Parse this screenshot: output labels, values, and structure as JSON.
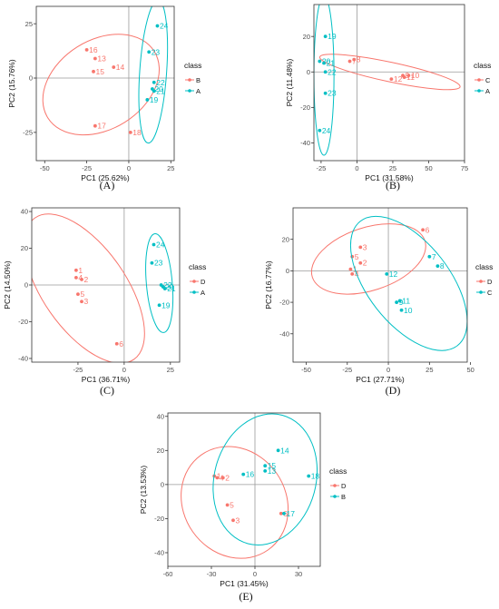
{
  "colors": {
    "red": "#F8766D",
    "teal": "#00BFC4",
    "zero_line": "#9a9a9a",
    "frame": "#333333"
  },
  "chart_data": [
    {
      "panel_label": "(A)",
      "type": "scatter",
      "xlabel": "PC1 (25.62%)",
      "ylabel": "PC2 (15.76%)",
      "xlim": [
        -55,
        27
      ],
      "ylim": [
        -38,
        33
      ],
      "xticks": [
        -50,
        -25,
        0,
        25
      ],
      "yticks": [
        -25,
        0,
        25
      ],
      "legend_title": "class",
      "legend_position": "right",
      "grid": false,
      "series": [
        {
          "name": "B",
          "color": "#F8766D",
          "points": [
            {
              "label": "16",
              "x": -25,
              "y": 13
            },
            {
              "label": "13",
              "x": -20,
              "y": 9
            },
            {
              "label": "15",
              "x": -21,
              "y": 3
            },
            {
              "label": "14",
              "x": -9,
              "y": 5
            },
            {
              "label": "17",
              "x": -20,
              "y": -22
            },
            {
              "label": "18",
              "x": 1,
              "y": -25
            }
          ],
          "ellipse": {
            "cx": -16.5,
            "cy": -3,
            "rx": 37.3,
            "ry": 20.5,
            "angle": -32
          }
        },
        {
          "name": "A",
          "color": "#00BFC4",
          "points": [
            {
              "label": "24",
              "x": 17,
              "y": 24
            },
            {
              "label": "23",
              "x": 12,
              "y": 12
            },
            {
              "label": "22",
              "x": 15,
              "y": -2
            },
            {
              "label": "20",
              "x": 14,
              "y": -5
            },
            {
              "label": "21",
              "x": 15,
              "y": -6
            },
            {
              "label": "19",
              "x": 11,
              "y": -10
            }
          ],
          "ellipse": {
            "cx": 14.5,
            "cy": 3,
            "rx": 8,
            "ry": 33,
            "angle": 4
          }
        }
      ]
    },
    {
      "panel_label": "(B)",
      "type": "scatter",
      "xlabel": "PC1 (31.58%)",
      "ylabel": "PC2 (11.48%)",
      "xlim": [
        -30,
        75
      ],
      "ylim": [
        -50,
        38
      ],
      "xticks": [
        -25,
        0,
        25,
        50,
        75
      ],
      "yticks": [
        -40,
        -20,
        0,
        20
      ],
      "legend_title": "class",
      "legend_position": "right",
      "grid": false,
      "series": [
        {
          "name": "C",
          "color": "#F8766D",
          "points": [
            {
              "label": "7",
              "x": -5,
              "y": 6
            },
            {
              "label": "8",
              "x": -2,
              "y": 7
            },
            {
              "label": "12",
              "x": 24,
              "y": -4
            },
            {
              "label": "9",
              "x": 32,
              "y": -2
            },
            {
              "label": "10",
              "x": 36,
              "y": -2
            },
            {
              "label": "11",
              "x": 33,
              "y": -3
            }
          ],
          "ellipse": {
            "cx": 23,
            "cy": 0,
            "rx": 50,
            "ry": 5.5,
            "angle": 12
          }
        },
        {
          "name": "A",
          "color": "#00BFC4",
          "points": [
            {
              "label": "19",
              "x": -22,
              "y": 20
            },
            {
              "label": "20",
              "x": -26,
              "y": 6
            },
            {
              "label": "21",
              "x": -23,
              "y": 5
            },
            {
              "label": "22",
              "x": -22,
              "y": 0
            },
            {
              "label": "23",
              "x": -22,
              "y": -12
            },
            {
              "label": "24",
              "x": -26,
              "y": -33
            }
          ],
          "ellipse": {
            "cx": -23,
            "cy": -2,
            "rx": 7,
            "ry": 45,
            "angle": 0
          }
        }
      ]
    },
    {
      "panel_label": "(C)",
      "type": "scatter",
      "xlabel": "PC1 (36.71%)",
      "ylabel": "PC2 (14.50%)",
      "xlim": [
        -50,
        30
      ],
      "ylim": [
        -42,
        42
      ],
      "xticks": [
        -25,
        0,
        25
      ],
      "yticks": [
        -40,
        -20,
        0,
        20,
        40
      ],
      "legend_title": "class",
      "legend_position": "right",
      "grid": false,
      "series": [
        {
          "name": "D",
          "color": "#F8766D",
          "points": [
            {
              "label": "1",
              "x": -26,
              "y": 8
            },
            {
              "label": "4",
              "x": -26,
              "y": 4
            },
            {
              "label": "2",
              "x": -23,
              "y": 3
            },
            {
              "label": "5",
              "x": -25,
              "y": -5
            },
            {
              "label": "3",
              "x": -23,
              "y": -9
            },
            {
              "label": "6",
              "x": -4,
              "y": -32
            }
          ],
          "ellipse": {
            "cx": -21.5,
            "cy": -2,
            "rx": 22.5,
            "ry": 47,
            "angle": -35
          }
        },
        {
          "name": "A",
          "color": "#00BFC4",
          "points": [
            {
              "label": "24",
              "x": 16,
              "y": 22
            },
            {
              "label": "23",
              "x": 15,
              "y": 12
            },
            {
              "label": "22",
              "x": 20,
              "y": 0
            },
            {
              "label": "20",
              "x": 21,
              "y": -1
            },
            {
              "label": "21",
              "x": 22,
              "y": -2
            },
            {
              "label": "19",
              "x": 19,
              "y": -11
            }
          ],
          "ellipse": {
            "cx": 19,
            "cy": 1,
            "rx": 7,
            "ry": 27,
            "angle": -5
          }
        }
      ]
    },
    {
      "panel_label": "(D)",
      "type": "scatter",
      "xlabel": "PC1 (27.71%)",
      "ylabel": "PC2 (16.77%)",
      "xlim": [
        -58,
        48
      ],
      "ylim": [
        -58,
        40
      ],
      "xticks": [
        -50,
        -25,
        0,
        25,
        50
      ],
      "yticks": [
        -40,
        -20,
        0,
        20
      ],
      "legend_title": "class",
      "legend_position": "right",
      "grid": false,
      "series": [
        {
          "name": "D",
          "color": "#F8766D",
          "points": [
            {
              "label": "6",
              "x": 21,
              "y": 26
            },
            {
              "label": "3",
              "x": -17,
              "y": 15
            },
            {
              "label": "5",
              "x": -22,
              "y": 9
            },
            {
              "label": "2",
              "x": -17,
              "y": 5
            },
            {
              "label": "1",
              "x": -23,
              "y": 1
            },
            {
              "label": "4",
              "x": -22,
              "y": -2
            }
          ],
          "ellipse": {
            "cx": -12,
            "cy": 7.5,
            "rx": 36,
            "ry": 20,
            "angle": -18
          }
        },
        {
          "name": "C",
          "color": "#00BFC4",
          "points": [
            {
              "label": "7",
              "x": 25,
              "y": 9
            },
            {
              "label": "8",
              "x": 30,
              "y": 3
            },
            {
              "label": "12",
              "x": -1,
              "y": -2
            },
            {
              "label": "9",
              "x": 5,
              "y": -20
            },
            {
              "label": "11",
              "x": 7,
              "y": -19
            },
            {
              "label": "10",
              "x": 8,
              "y": -25
            }
          ],
          "ellipse": {
            "cx": 12.5,
            "cy": -8,
            "rx": 48,
            "ry": 26,
            "angle": 52
          }
        }
      ]
    },
    {
      "panel_label": "(E)",
      "type": "scatter",
      "xlabel": "PC1 (31.45%)",
      "ylabel": "PC2 (13.53%)",
      "xlim": [
        -60,
        45
      ],
      "ylim": [
        -48,
        42
      ],
      "xticks": [
        -60,
        -30,
        0,
        30
      ],
      "yticks": [
        -40,
        -20,
        0,
        20,
        40
      ],
      "legend_title": "class",
      "legend_position": "right",
      "grid": false,
      "series": [
        {
          "name": "D",
          "color": "#F8766D",
          "points": [
            {
              "label": "1",
              "x": -28,
              "y": 5
            },
            {
              "label": "4",
              "x": -26,
              "y": 4
            },
            {
              "label": "2",
              "x": -22,
              "y": 4
            },
            {
              "label": "5",
              "x": -19,
              "y": -12
            },
            {
              "label": "3",
              "x": -15,
              "y": -21
            },
            {
              "label": "6",
              "x": 18,
              "y": -17
            }
          ],
          "ellipse": {
            "cx": -14,
            "cy": -10.5,
            "rx": 40,
            "ry": 30,
            "angle": 55
          }
        },
        {
          "name": "B",
          "color": "#00BFC4",
          "points": [
            {
              "label": "14",
              "x": 16,
              "y": 20
            },
            {
              "label": "15",
              "x": 7,
              "y": 11
            },
            {
              "label": "13",
              "x": 7,
              "y": 8
            },
            {
              "label": "16",
              "x": -8,
              "y": 6
            },
            {
              "label": "18",
              "x": 37,
              "y": 5
            },
            {
              "label": "17",
              "x": 20,
              "y": -17
            }
          ],
          "ellipse": {
            "cx": 7,
            "cy": 3,
            "rx": 35,
            "ry": 39,
            "angle": 15
          }
        }
      ]
    }
  ]
}
